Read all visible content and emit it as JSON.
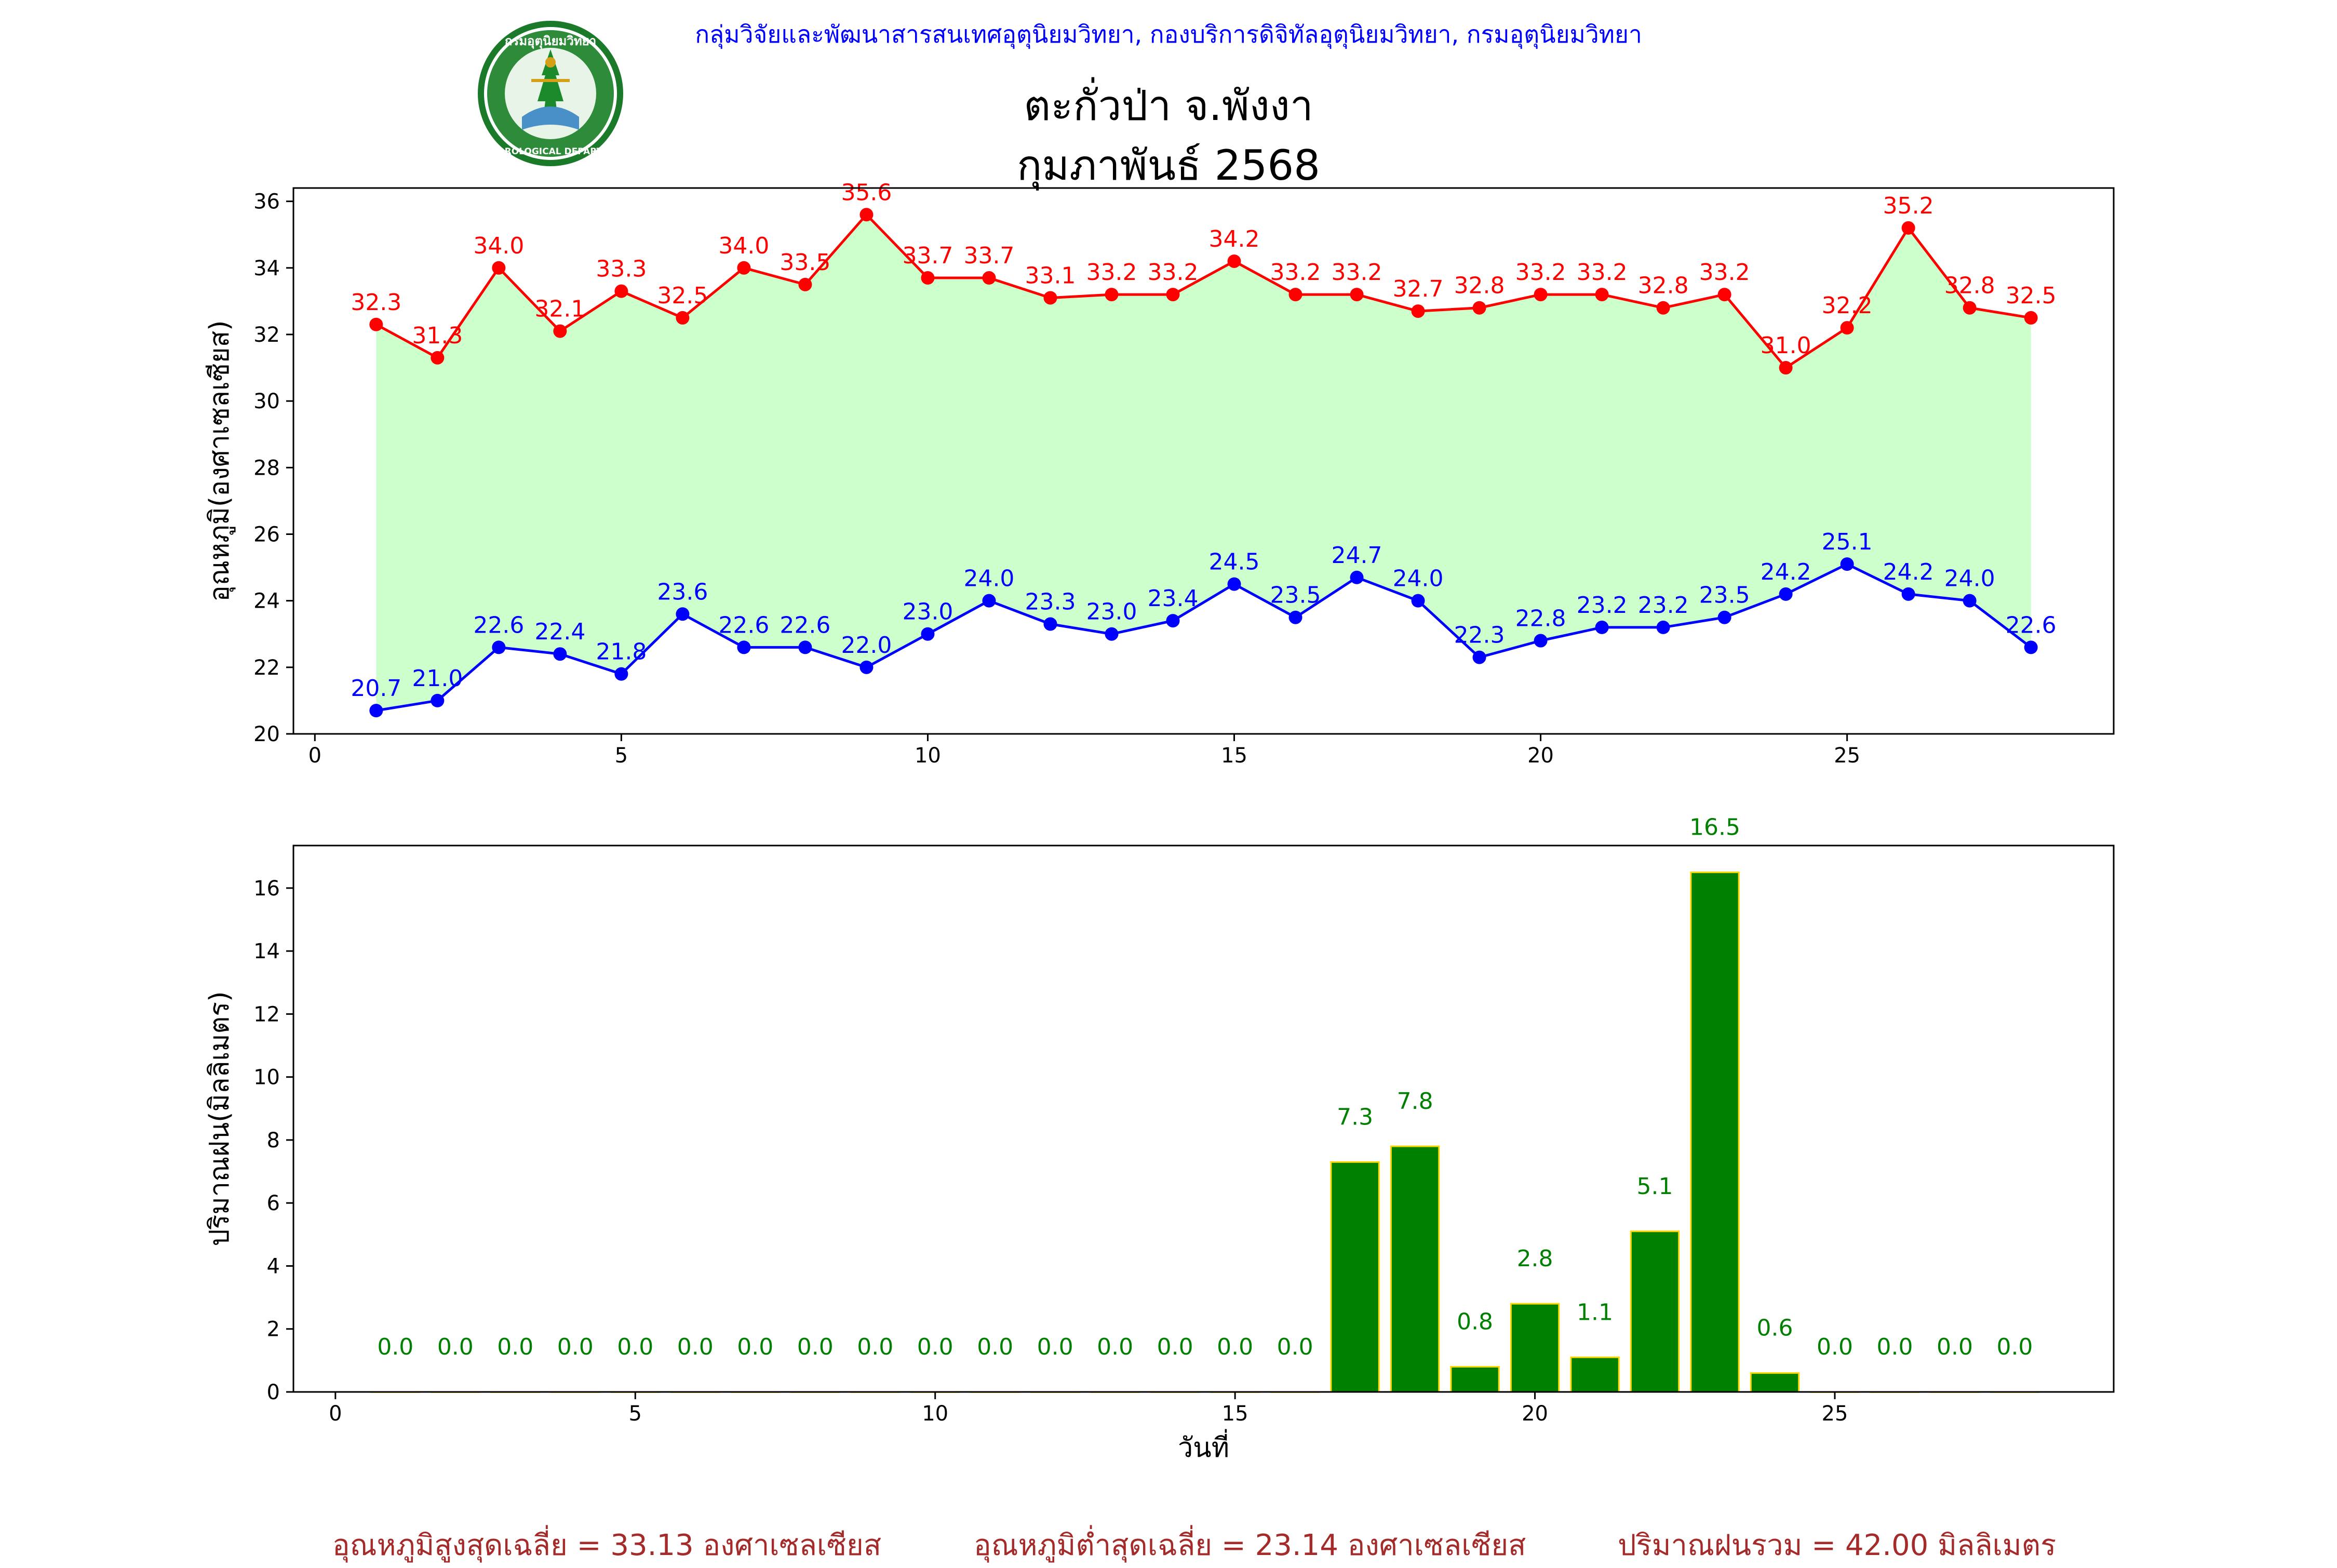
{
  "header": {
    "organization": "กลุ่มวิจัยและพัฒนาสารสนเทศอุตุนิยมวิทยา, กองบริการดิจิทัลอุตุนิยมวิทยา, กรมอุตุนิยมวิทยา",
    "logo_text_top": "กรมอุตุนิยมวิทยา",
    "logo_text_bottom": "METEOROLOGICAL DEPARTMENT",
    "title_line1": "ตะกั่วป่า จ.พังงา",
    "title_line2": "กุมภาพันธ์ 2568"
  },
  "colors": {
    "max_line": "#ff0000",
    "min_line": "#0000ff",
    "fill": "#ccffcc",
    "bar_fill": "#008000",
    "bar_edge": "#ffd700",
    "bar_label": "#008000",
    "header": "#0000ff",
    "footer": "#a52a2a"
  },
  "chart_data": [
    {
      "type": "line",
      "x": [
        1,
        2,
        3,
        4,
        5,
        6,
        7,
        8,
        9,
        10,
        11,
        12,
        13,
        14,
        15,
        16,
        17,
        18,
        19,
        20,
        21,
        22,
        23,
        24,
        25,
        26,
        27,
        28
      ],
      "series": [
        {
          "key": "max",
          "values": [
            32.3,
            31.3,
            34.0,
            32.1,
            33.3,
            32.5,
            34.0,
            33.5,
            35.6,
            33.7,
            33.7,
            33.1,
            33.2,
            33.2,
            34.2,
            33.2,
            33.2,
            32.7,
            32.8,
            33.2,
            33.2,
            32.8,
            33.2,
            31.0,
            32.2,
            35.2,
            32.8,
            32.5
          ]
        },
        {
          "key": "min",
          "values": [
            20.7,
            21.0,
            22.6,
            22.4,
            21.8,
            23.6,
            22.6,
            22.6,
            22.0,
            23.0,
            24.0,
            23.3,
            23.0,
            23.4,
            24.5,
            23.5,
            24.7,
            24.0,
            22.3,
            22.8,
            23.2,
            23.2,
            23.5,
            24.2,
            25.1,
            24.2,
            24.0,
            22.6
          ]
        }
      ],
      "ylabel": "อุณหภูมิ(องศาเซลเซียส)",
      "xlim": [
        -0.35,
        29.35
      ],
      "ylim": [
        20,
        36.4
      ],
      "xticks": [
        0,
        5,
        10,
        15,
        20,
        25
      ],
      "yticks": [
        20,
        22,
        24,
        26,
        28,
        30,
        32,
        34,
        36
      ],
      "fill_between": true,
      "grid": false
    },
    {
      "type": "bar",
      "x": [
        1,
        2,
        3,
        4,
        5,
        6,
        7,
        8,
        9,
        10,
        11,
        12,
        13,
        14,
        15,
        16,
        17,
        18,
        19,
        20,
        21,
        22,
        23,
        24,
        25,
        26,
        27,
        28
      ],
      "values": [
        0.0,
        0.0,
        0.0,
        0.0,
        0.0,
        0.0,
        0.0,
        0.0,
        0.0,
        0.0,
        0.0,
        0.0,
        0.0,
        0.0,
        0.0,
        0.0,
        7.3,
        7.8,
        0.8,
        2.8,
        1.1,
        5.1,
        16.5,
        0.6,
        0.0,
        0.0,
        0.0,
        0.0
      ],
      "xlabel": "วันที่",
      "ylabel": "ปริมาณฝน(มิลลิเมตร)",
      "xlim": [
        -0.7,
        29.65
      ],
      "ylim": [
        0,
        17.35
      ],
      "xticks": [
        0,
        5,
        10,
        15,
        20,
        25
      ],
      "yticks": [
        0,
        2,
        4,
        6,
        8,
        10,
        12,
        14,
        16
      ],
      "grid": false
    }
  ],
  "footer": {
    "avg_max": "อุณหภูมิสูงสุดเฉลี่ย = 33.13 องศาเซลเซียส",
    "avg_min": "อุณหภูมิต่ำสุดเฉลี่ย = 23.14 องศาเซลเซียส",
    "total_rain": "ปริมาณฝนรวม = 42.00 มิลลิเมตร"
  }
}
